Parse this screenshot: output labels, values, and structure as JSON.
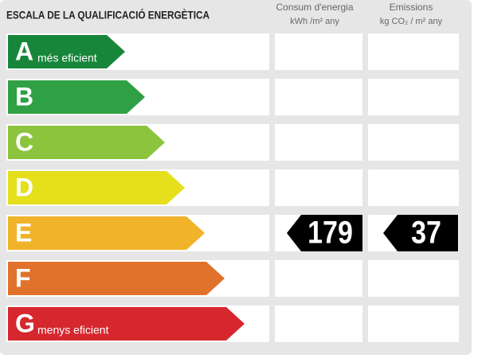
{
  "header": {
    "title": "ESCALA DE LA QUALIFICACIÓ ENERGÈTICA",
    "columns": [
      {
        "name": "Consum d'energia",
        "unit": "kWh /m² any"
      },
      {
        "name": "Emissions",
        "unit": "kg CO₂ / m² any"
      }
    ]
  },
  "rows": [
    {
      "class": "A",
      "note": "més eficient",
      "color": "#17863a"
    },
    {
      "class": "B",
      "color": "#2fa044"
    },
    {
      "class": "C",
      "color": "#8cc43e"
    },
    {
      "class": "D",
      "color": "#e5df1c"
    },
    {
      "class": "E",
      "color": "#f0b32a",
      "consum": 179,
      "emissions": 37
    },
    {
      "class": "F",
      "color": "#e0722b"
    },
    {
      "class": "G",
      "note": "menys eficient",
      "color": "#d6272e"
    }
  ]
}
